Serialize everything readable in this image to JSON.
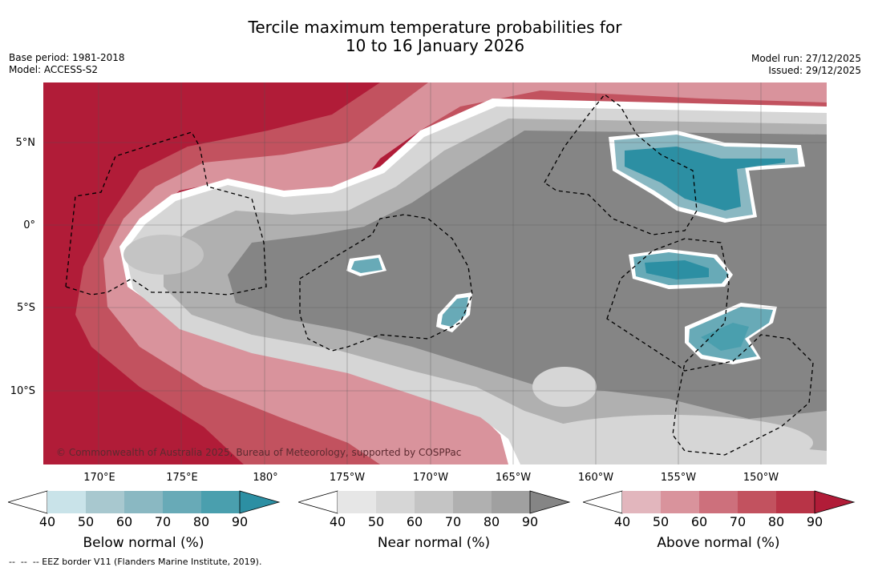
{
  "title_line1": "Tercile maximum temperature probabilities for",
  "title_line2": "10 to 16 January 2026",
  "base_period": "Base period: 1981-2018",
  "model": "Model: ACCESS-S2",
  "model_run": "Model run: 27/12/2025",
  "issued": "Issued: 29/12/2025",
  "lat_labels": [
    "5°N",
    "0°",
    "5°S",
    "10°S"
  ],
  "lon_labels": [
    "170°E",
    "175°E",
    "180°",
    "175°W",
    "170°W",
    "165°W",
    "160°W",
    "155°W",
    "150°W"
  ],
  "copyright": "© Commonwealth of Australia 2025, Bureau of Meteorology, supported by COSPPac",
  "colorbars": [
    {
      "title": "Below normal (%)",
      "ticks": [
        "40",
        "50",
        "60",
        "70",
        "80",
        "90"
      ],
      "colors": [
        "#c9e3e9",
        "#a8c8cf",
        "#8ab8c2",
        "#68aab7",
        "#4a9fae",
        "#2c8fa3"
      ]
    },
    {
      "title": "Near normal (%)",
      "ticks": [
        "40",
        "50",
        "60",
        "70",
        "80",
        "90"
      ],
      "colors": [
        "#e6e6e6",
        "#d6d6d6",
        "#c4c4c4",
        "#b0b0b0",
        "#a0a0a0",
        "#858585"
      ]
    },
    {
      "title": "Above normal (%)",
      "ticks": [
        "40",
        "50",
        "60",
        "70",
        "80",
        "90"
      ],
      "colors": [
        "#e2b6bd",
        "#d9939c",
        "#cd707c",
        "#c2525f",
        "#b83447",
        "#b11c38"
      ]
    }
  ],
  "footer": "--  --  -- EEZ border V11 (Flanders Marine Institute, 2019)."
}
